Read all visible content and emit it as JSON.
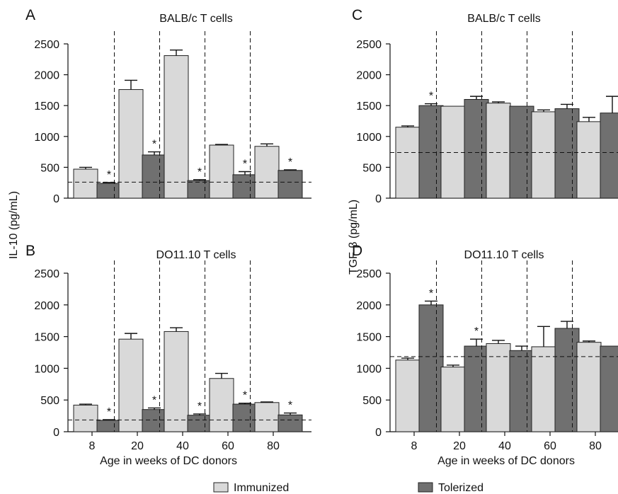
{
  "figure": {
    "left_ylabel": "IL-10 (pg/mL)",
    "right_ylabel": "TGF-β (pg/mL)",
    "xlabel": "Age in weeks of DC donors",
    "legend": [
      {
        "label": "Immunized",
        "color": "#d9d9d9"
      },
      {
        "label": "Tolerized",
        "color": "#707070"
      }
    ]
  },
  "colors": {
    "immunized": "#d9d9d9",
    "tolerized": "#707070",
    "stroke": "#222222"
  },
  "chart_data": [
    {
      "panel": "A",
      "title": "BALB/c T cells",
      "type": "bar",
      "categories": [
        "8",
        "20",
        "40",
        "60",
        "80"
      ],
      "ylabel": "IL-10 (pg/mL)",
      "ylim": [
        0,
        2500
      ],
      "yticks": [
        0,
        500,
        1000,
        1500,
        2000,
        2500
      ],
      "show_xticks": false,
      "baseline": 260,
      "series": [
        {
          "name": "Immunized",
          "values": [
            470,
            1760,
            2310,
            860,
            840
          ],
          "errors": [
            30,
            150,
            90,
            10,
            40
          ],
          "significant": [
            false,
            false,
            false,
            false,
            false
          ]
        },
        {
          "name": "Tolerized",
          "values": [
            240,
            700,
            285,
            380,
            450
          ],
          "errors": [
            15,
            50,
            15,
            50,
            10
          ],
          "significant": [
            true,
            true,
            true,
            true,
            true
          ]
        }
      ]
    },
    {
      "panel": "B",
      "title": "DO11.10 T cells",
      "type": "bar",
      "categories": [
        "8",
        "20",
        "40",
        "60",
        "80"
      ],
      "ylabel": "IL-10 (pg/mL)",
      "ylim": [
        0,
        2500
      ],
      "yticks": [
        0,
        500,
        1000,
        1500,
        2000,
        2500
      ],
      "show_xticks": true,
      "baseline": 185,
      "series": [
        {
          "name": "Immunized",
          "values": [
            420,
            1460,
            1580,
            840,
            460
          ],
          "errors": [
            15,
            90,
            60,
            80,
            10
          ],
          "significant": [
            false,
            false,
            false,
            false,
            false
          ]
        },
        {
          "name": "Tolerized",
          "values": [
            180,
            350,
            260,
            435,
            265
          ],
          "errors": [
            10,
            25,
            20,
            15,
            30
          ],
          "significant": [
            true,
            true,
            true,
            true,
            true
          ]
        }
      ]
    },
    {
      "panel": "C",
      "title": "BALB/c T cells",
      "type": "bar",
      "categories": [
        "8",
        "20",
        "40",
        "60",
        "80"
      ],
      "ylabel": "TGF-β (pg/mL)",
      "ylim": [
        0,
        2500
      ],
      "yticks": [
        0,
        500,
        1000,
        1500,
        2000,
        2500
      ],
      "show_xticks": false,
      "baseline": 740,
      "series": [
        {
          "name": "Immunized",
          "values": [
            1150,
            1490,
            1540,
            1400,
            1240
          ],
          "errors": [
            20,
            0,
            20,
            30,
            70
          ],
          "significant": [
            false,
            false,
            false,
            false,
            false
          ]
        },
        {
          "name": "Tolerized",
          "values": [
            1500,
            1600,
            1490,
            1450,
            1380
          ],
          "errors": [
            30,
            50,
            0,
            70,
            270
          ],
          "significant": [
            true,
            false,
            false,
            false,
            false
          ]
        }
      ]
    },
    {
      "panel": "D",
      "title": "DO11.10 T cells",
      "type": "bar",
      "categories": [
        "8",
        "20",
        "40",
        "60",
        "80"
      ],
      "ylabel": "TGF-β (pg/mL)",
      "ylim": [
        0,
        2500
      ],
      "yticks": [
        0,
        500,
        1000,
        1500,
        2000,
        2500
      ],
      "show_xticks": true,
      "baseline": 1185,
      "series": [
        {
          "name": "Immunized",
          "values": [
            1130,
            1020,
            1390,
            1340,
            1410
          ],
          "errors": [
            30,
            30,
            50,
            320,
            20
          ],
          "significant": [
            false,
            false,
            false,
            false,
            false
          ]
        },
        {
          "name": "Tolerized",
          "values": [
            2000,
            1350,
            1280,
            1630,
            1350
          ],
          "errors": [
            60,
            110,
            70,
            110,
            0
          ],
          "significant": [
            true,
            true,
            false,
            false,
            false
          ]
        }
      ]
    }
  ]
}
